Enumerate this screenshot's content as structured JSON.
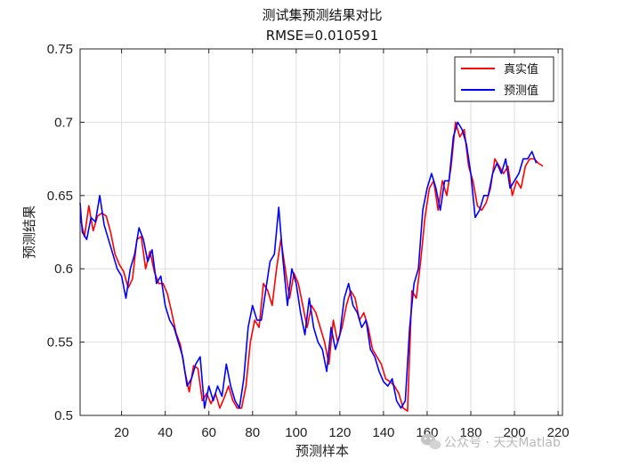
{
  "chart_data": {
    "type": "line",
    "title": "测试集预测结果对比",
    "subtitle": "RMSE=0.010591",
    "xlabel": "预测样本",
    "ylabel": "预测结果",
    "xlim": [
      1,
      222
    ],
    "ylim": [
      0.5,
      0.75
    ],
    "xticks": [
      "20",
      "40",
      "60",
      "80",
      "100",
      "120",
      "140",
      "160",
      "180",
      "200",
      "220"
    ],
    "yticks": [
      "0.5",
      "0.55",
      "0.6",
      "0.65",
      "0.7",
      "0.75"
    ],
    "grid": true,
    "legend_position": "top-right",
    "series": [
      {
        "name": "真实值",
        "color": "#ff0000",
        "points": [
          [
            1,
            0.635
          ],
          [
            3,
            0.622
          ],
          [
            5,
            0.643
          ],
          [
            7,
            0.626
          ],
          [
            9,
            0.636
          ],
          [
            11,
            0.638
          ],
          [
            13,
            0.636
          ],
          [
            15,
            0.625
          ],
          [
            17,
            0.61
          ],
          [
            19,
            0.603
          ],
          [
            21,
            0.598
          ],
          [
            23,
            0.587
          ],
          [
            25,
            0.593
          ],
          [
            27,
            0.62
          ],
          [
            29,
            0.622
          ],
          [
            31,
            0.6
          ],
          [
            33,
            0.612
          ],
          [
            35,
            0.598
          ],
          [
            37,
            0.59
          ],
          [
            39,
            0.59
          ],
          [
            41,
            0.583
          ],
          [
            43,
            0.57
          ],
          [
            45,
            0.556
          ],
          [
            47,
            0.548
          ],
          [
            49,
            0.53
          ],
          [
            51,
            0.516
          ],
          [
            53,
            0.534
          ],
          [
            55,
            0.532
          ],
          [
            57,
            0.51
          ],
          [
            59,
            0.515
          ],
          [
            61,
            0.508
          ],
          [
            63,
            0.515
          ],
          [
            65,
            0.505
          ],
          [
            67,
            0.512
          ],
          [
            69,
            0.52
          ],
          [
            71,
            0.51
          ],
          [
            73,
            0.505
          ],
          [
            75,
            0.505
          ],
          [
            77,
            0.52
          ],
          [
            79,
            0.55
          ],
          [
            81,
            0.565
          ],
          [
            83,
            0.56
          ],
          [
            85,
            0.59
          ],
          [
            87,
            0.585
          ],
          [
            89,
            0.575
          ],
          [
            91,
            0.6
          ],
          [
            93,
            0.62
          ],
          [
            95,
            0.6
          ],
          [
            97,
            0.58
          ],
          [
            99,
            0.597
          ],
          [
            101,
            0.59
          ],
          [
            103,
            0.575
          ],
          [
            105,
            0.56
          ],
          [
            107,
            0.575
          ],
          [
            109,
            0.57
          ],
          [
            111,
            0.56
          ],
          [
            113,
            0.55
          ],
          [
            115,
            0.535
          ],
          [
            117,
            0.565
          ],
          [
            119,
            0.55
          ],
          [
            121,
            0.56
          ],
          [
            123,
            0.575
          ],
          [
            125,
            0.585
          ],
          [
            127,
            0.58
          ],
          [
            129,
            0.565
          ],
          [
            131,
            0.57
          ],
          [
            133,
            0.56
          ],
          [
            135,
            0.545
          ],
          [
            137,
            0.54
          ],
          [
            139,
            0.535
          ],
          [
            141,
            0.525
          ],
          [
            143,
            0.523
          ],
          [
            145,
            0.52
          ],
          [
            147,
            0.515
          ],
          [
            149,
            0.505
          ],
          [
            151,
            0.503
          ],
          [
            153,
            0.585
          ],
          [
            155,
            0.58
          ],
          [
            157,
            0.605
          ],
          [
            159,
            0.635
          ],
          [
            161,
            0.655
          ],
          [
            163,
            0.66
          ],
          [
            165,
            0.64
          ],
          [
            167,
            0.66
          ],
          [
            169,
            0.65
          ],
          [
            171,
            0.67
          ],
          [
            173,
            0.7
          ],
          [
            175,
            0.69
          ],
          [
            177,
            0.695
          ],
          [
            179,
            0.67
          ],
          [
            181,
            0.66
          ],
          [
            183,
            0.643
          ],
          [
            185,
            0.64
          ],
          [
            187,
            0.645
          ],
          [
            189,
            0.655
          ],
          [
            191,
            0.675
          ],
          [
            193,
            0.67
          ],
          [
            195,
            0.665
          ],
          [
            197,
            0.67
          ],
          [
            199,
            0.65
          ],
          [
            201,
            0.66
          ],
          [
            203,
            0.655
          ],
          [
            205,
            0.67
          ],
          [
            207,
            0.675
          ],
          [
            209,
            0.675
          ],
          [
            211,
            0.672
          ],
          [
            213,
            0.67
          ]
        ]
      },
      {
        "name": "预测值",
        "color": "#0000ff",
        "points": [
          [
            1,
            0.645
          ],
          [
            2,
            0.625
          ],
          [
            4,
            0.62
          ],
          [
            6,
            0.635
          ],
          [
            8,
            0.632
          ],
          [
            10,
            0.65
          ],
          [
            12,
            0.63
          ],
          [
            14,
            0.62
          ],
          [
            16,
            0.61
          ],
          [
            18,
            0.6
          ],
          [
            20,
            0.595
          ],
          [
            22,
            0.58
          ],
          [
            24,
            0.6
          ],
          [
            26,
            0.61
          ],
          [
            28,
            0.628
          ],
          [
            30,
            0.62
          ],
          [
            32,
            0.605
          ],
          [
            34,
            0.613
          ],
          [
            36,
            0.59
          ],
          [
            38,
            0.595
          ],
          [
            40,
            0.575
          ],
          [
            42,
            0.565
          ],
          [
            44,
            0.56
          ],
          [
            46,
            0.55
          ],
          [
            48,
            0.54
          ],
          [
            50,
            0.52
          ],
          [
            52,
            0.525
          ],
          [
            54,
            0.535
          ],
          [
            56,
            0.54
          ],
          [
            58,
            0.505
          ],
          [
            60,
            0.52
          ],
          [
            62,
            0.51
          ],
          [
            64,
            0.52
          ],
          [
            66,
            0.513
          ],
          [
            68,
            0.535
          ],
          [
            70,
            0.52
          ],
          [
            72,
            0.51
          ],
          [
            74,
            0.505
          ],
          [
            76,
            0.525
          ],
          [
            78,
            0.56
          ],
          [
            80,
            0.575
          ],
          [
            82,
            0.565
          ],
          [
            84,
            0.565
          ],
          [
            86,
            0.585
          ],
          [
            88,
            0.605
          ],
          [
            90,
            0.61
          ],
          [
            92,
            0.642
          ],
          [
            94,
            0.605
          ],
          [
            96,
            0.575
          ],
          [
            98,
            0.6
          ],
          [
            100,
            0.59
          ],
          [
            102,
            0.57
          ],
          [
            104,
            0.555
          ],
          [
            106,
            0.58
          ],
          [
            108,
            0.56
          ],
          [
            110,
            0.55
          ],
          [
            112,
            0.545
          ],
          [
            114,
            0.53
          ],
          [
            116,
            0.56
          ],
          [
            118,
            0.545
          ],
          [
            120,
            0.555
          ],
          [
            122,
            0.58
          ],
          [
            124,
            0.59
          ],
          [
            126,
            0.575
          ],
          [
            128,
            0.57
          ],
          [
            130,
            0.56
          ],
          [
            132,
            0.565
          ],
          [
            134,
            0.545
          ],
          [
            136,
            0.54
          ],
          [
            138,
            0.53
          ],
          [
            140,
            0.523
          ],
          [
            142,
            0.52
          ],
          [
            144,
            0.525
          ],
          [
            146,
            0.51
          ],
          [
            148,
            0.505
          ],
          [
            150,
            0.51
          ],
          [
            152,
            0.56
          ],
          [
            154,
            0.59
          ],
          [
            156,
            0.6
          ],
          [
            158,
            0.64
          ],
          [
            160,
            0.655
          ],
          [
            162,
            0.665
          ],
          [
            164,
            0.655
          ],
          [
            166,
            0.64
          ],
          [
            168,
            0.66
          ],
          [
            170,
            0.66
          ],
          [
            172,
            0.69
          ],
          [
            174,
            0.7
          ],
          [
            176,
            0.695
          ],
          [
            178,
            0.685
          ],
          [
            180,
            0.665
          ],
          [
            182,
            0.635
          ],
          [
            184,
            0.64
          ],
          [
            186,
            0.65
          ],
          [
            188,
            0.65
          ],
          [
            190,
            0.665
          ],
          [
            192,
            0.672
          ],
          [
            194,
            0.665
          ],
          [
            196,
            0.675
          ],
          [
            198,
            0.655
          ],
          [
            200,
            0.66
          ],
          [
            202,
            0.665
          ],
          [
            204,
            0.675
          ],
          [
            206,
            0.675
          ],
          [
            208,
            0.68
          ],
          [
            210,
            0.672
          ]
        ]
      }
    ]
  },
  "watermark": {
    "text": "公众号 · 天天Matlab",
    "icon": "wechat-icon"
  }
}
